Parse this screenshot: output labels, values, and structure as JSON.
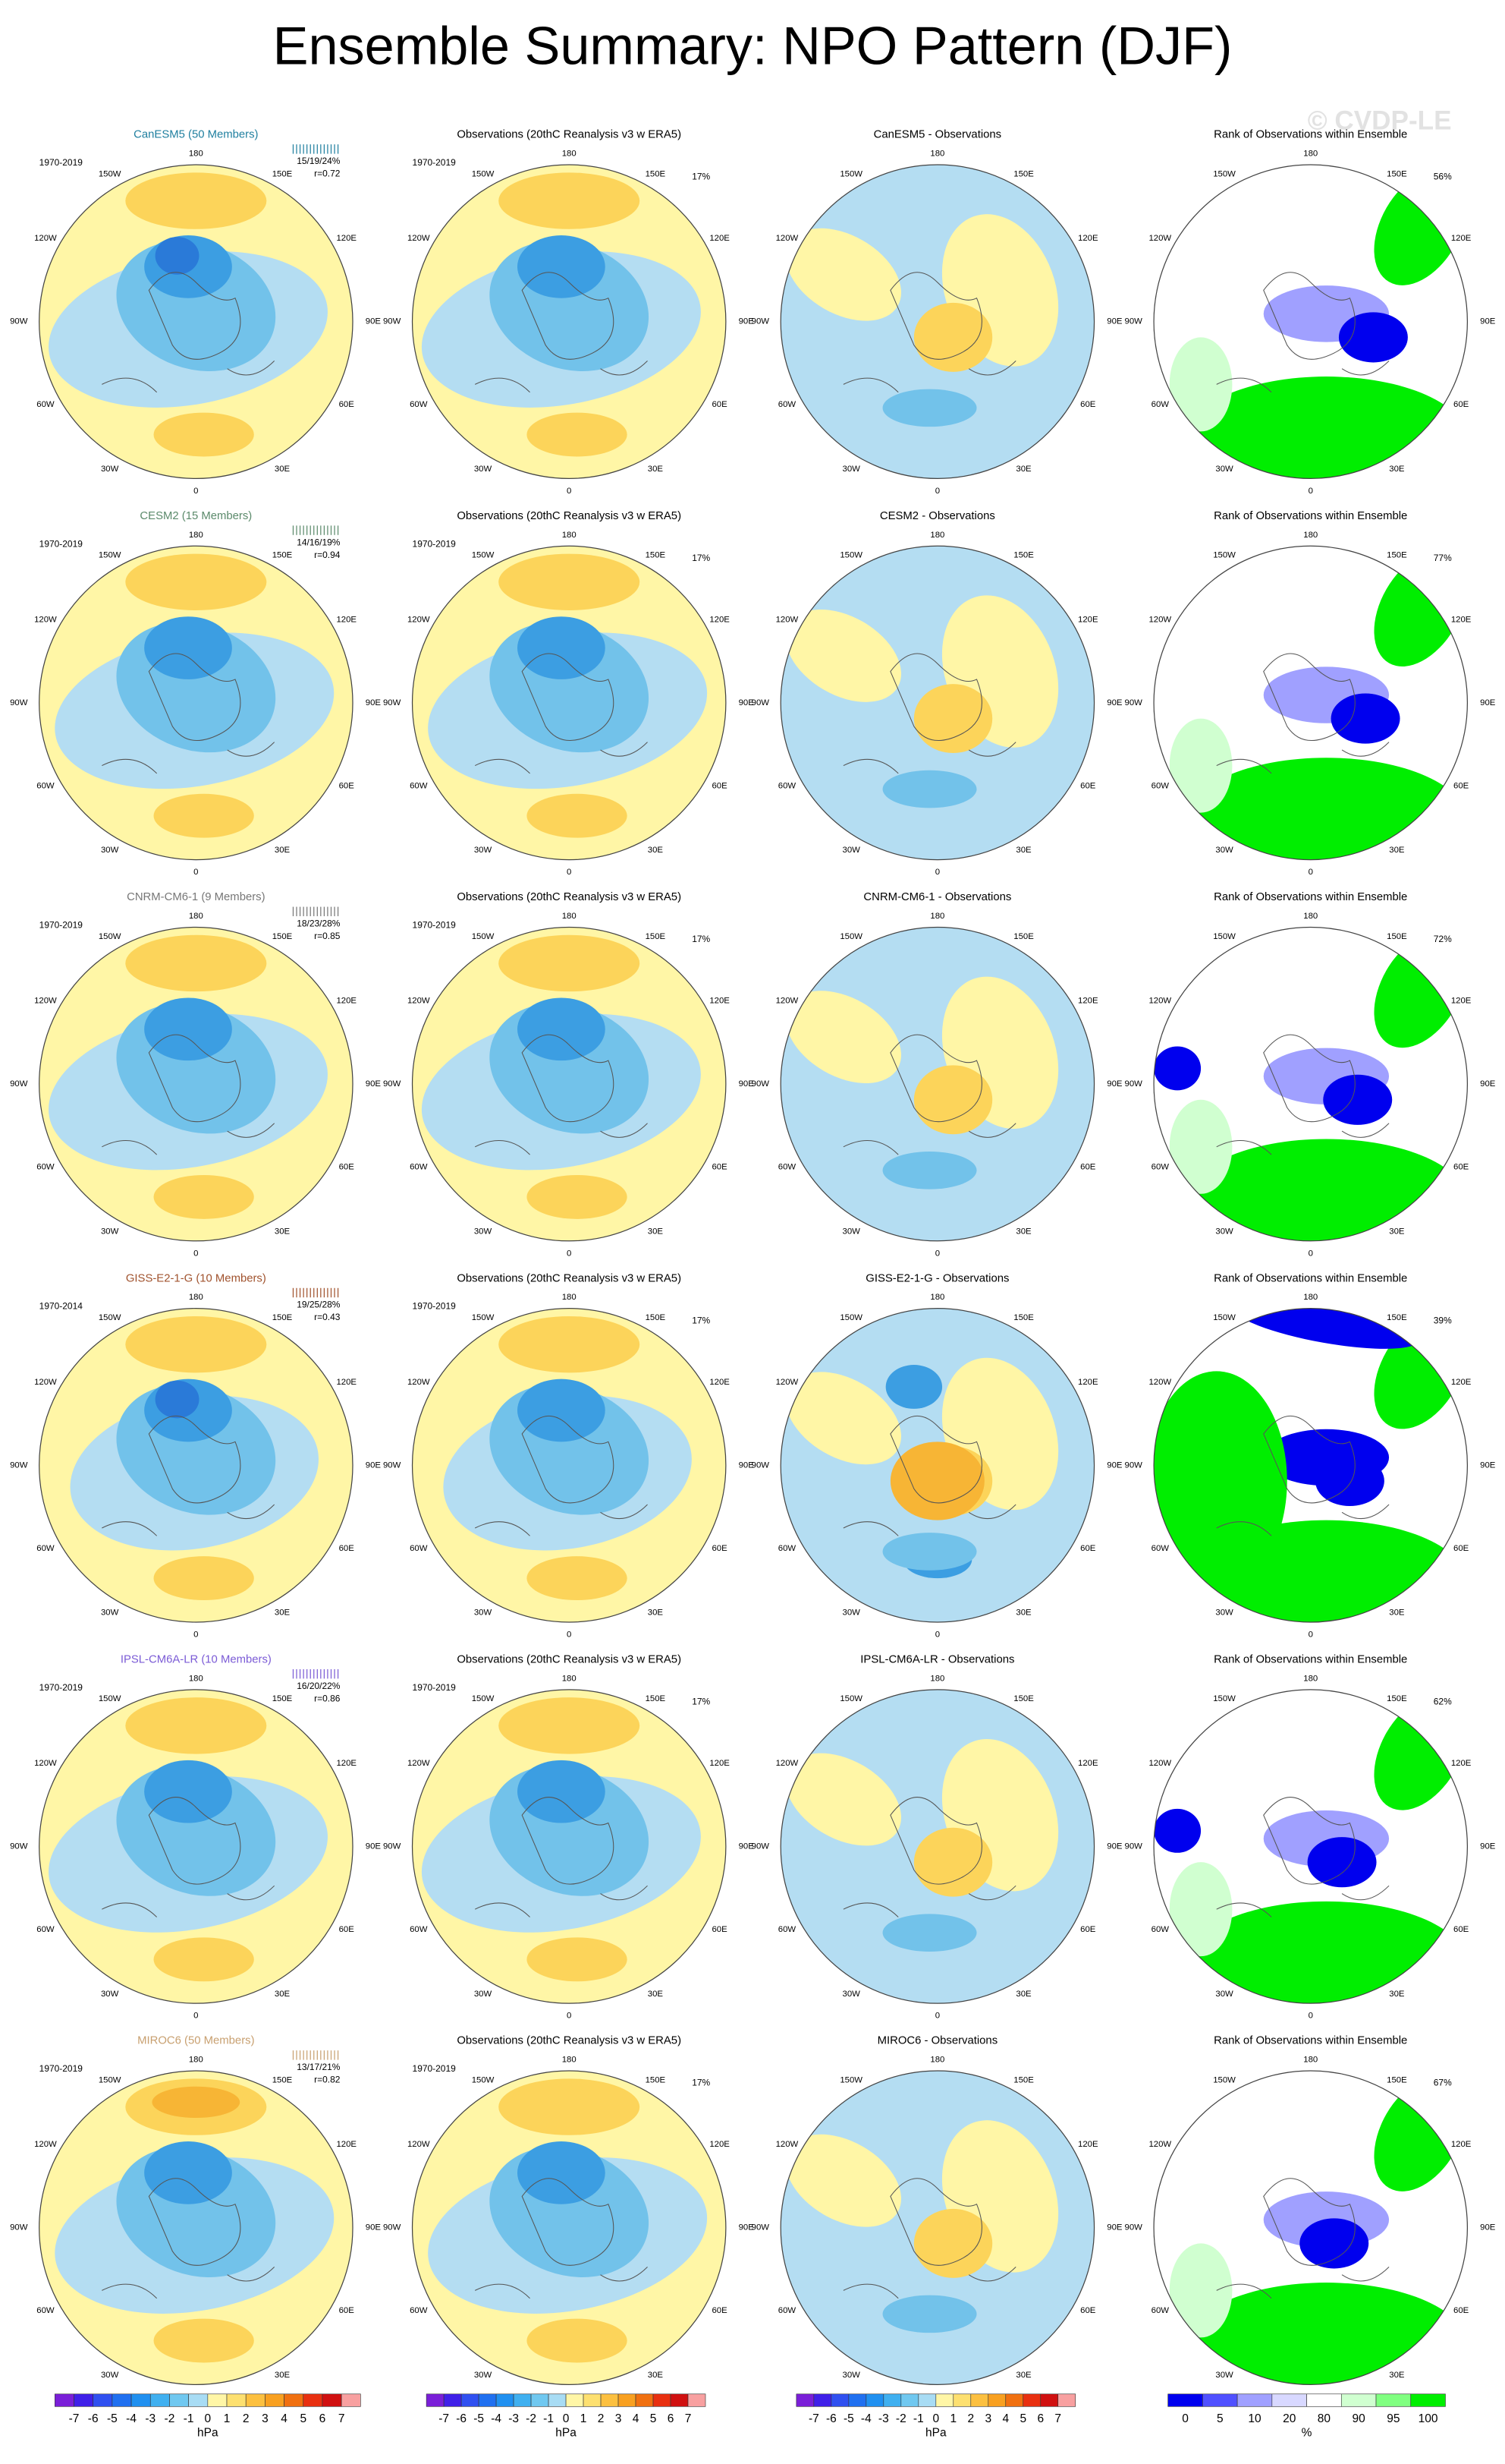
{
  "title": "Ensemble Summary: NPO Pattern (DJF)",
  "watermark": "© CVDP-LE",
  "lon_labels": [
    "180",
    "150W",
    "150E",
    "120W",
    "120E",
    "90W",
    "90E",
    "60W",
    "60E",
    "30W",
    "30E",
    "0"
  ],
  "rows": [
    {
      "panels": [
        {
          "title": "CanESM5 (50 Members)",
          "title_color": "#1f7f9f",
          "period": "1970-2019",
          "stats": "15/19/24%",
          "corr": "r=0.72"
        },
        {
          "title": "Observations (20thC Reanalysis v3 w ERA5)",
          "period": "1970-2019",
          "pct": "17%"
        },
        {
          "title": "CanESM5 - Observations"
        },
        {
          "title": "Rank of Observations within Ensemble",
          "pct": "56%"
        }
      ]
    },
    {
      "panels": [
        {
          "title": "CESM2 (15 Members)",
          "title_color": "#5b8a6b",
          "period": "1970-2019",
          "stats": "14/16/19%",
          "corr": "r=0.94"
        },
        {
          "title": "Observations (20thC Reanalysis v3 w ERA5)",
          "period": "1970-2019",
          "pct": "17%"
        },
        {
          "title": "CESM2 - Observations"
        },
        {
          "title": "Rank of Observations within Ensemble",
          "pct": "77%"
        }
      ]
    },
    {
      "panels": [
        {
          "title": "CNRM-CM6-1 (9 Members)",
          "title_color": "#777777",
          "period": "1970-2019",
          "stats": "18/23/28%",
          "corr": "r=0.85"
        },
        {
          "title": "Observations (20thC Reanalysis v3 w ERA5)",
          "period": "1970-2019",
          "pct": "17%"
        },
        {
          "title": "CNRM-CM6-1 - Observations"
        },
        {
          "title": "Rank of Observations within Ensemble",
          "pct": "72%"
        }
      ]
    },
    {
      "panels": [
        {
          "title": "GISS-E2-1-G (10 Members)",
          "title_color": "#a0522d",
          "period": "1970-2014",
          "stats": "19/25/28%",
          "corr": "r=0.43"
        },
        {
          "title": "Observations (20thC Reanalysis v3 w ERA5)",
          "period": "1970-2019",
          "pct": "17%"
        },
        {
          "title": "GISS-E2-1-G - Observations"
        },
        {
          "title": "Rank of Observations within Ensemble",
          "pct": "39%"
        }
      ]
    },
    {
      "panels": [
        {
          "title": "IPSL-CM6A-LR (10 Members)",
          "title_color": "#7b5bd6",
          "period": "1970-2019",
          "stats": "16/20/22%",
          "corr": "r=0.86"
        },
        {
          "title": "Observations (20thC Reanalysis v3 w ERA5)",
          "period": "1970-2019",
          "pct": "17%"
        },
        {
          "title": "IPSL-CM6A-LR - Observations"
        },
        {
          "title": "Rank of Observations within Ensemble",
          "pct": "62%"
        }
      ]
    },
    {
      "panels": [
        {
          "title": "MIROC6 (50 Members)",
          "title_color": "#c8a070",
          "period": "1970-2019",
          "stats": "13/17/21%",
          "corr": "r=0.82"
        },
        {
          "title": "Observations (20thC Reanalysis v3 w ERA5)",
          "period": "1970-2019",
          "pct": "17%"
        },
        {
          "title": "MIROC6 - Observations"
        },
        {
          "title": "Rank of Observations within Ensemble",
          "pct": "67%"
        }
      ]
    }
  ],
  "colorbars": [
    {
      "labels": [
        "-7",
        "-6",
        "-5",
        "-4",
        "-3",
        "-2",
        "-1",
        "0",
        "1",
        "2",
        "3",
        "4",
        "5",
        "6",
        "7"
      ],
      "unit": "hPa",
      "colors": [
        "#7a1fd8",
        "#4020e8",
        "#3050f0",
        "#2070f0",
        "#2090f0",
        "#40b0f0",
        "#70c8f0",
        "#a8dcf4",
        "#fff6a6",
        "#fde070",
        "#fcc040",
        "#f8a020",
        "#f07010",
        "#e83010",
        "#d01010",
        "#f8a0a0"
      ]
    },
    {
      "labels": [
        "-7",
        "-6",
        "-5",
        "-4",
        "-3",
        "-2",
        "-1",
        "0",
        "1",
        "2",
        "3",
        "4",
        "5",
        "6",
        "7"
      ],
      "unit": "hPa",
      "colors": [
        "#7a1fd8",
        "#4020e8",
        "#3050f0",
        "#2070f0",
        "#2090f0",
        "#40b0f0",
        "#70c8f0",
        "#a8dcf4",
        "#fff6a6",
        "#fde070",
        "#fcc040",
        "#f8a020",
        "#f07010",
        "#e83010",
        "#d01010",
        "#f8a0a0"
      ]
    },
    {
      "labels": [
        "-7",
        "-6",
        "-5",
        "-4",
        "-3",
        "-2",
        "-1",
        "0",
        "1",
        "2",
        "3",
        "4",
        "5",
        "6",
        "7"
      ],
      "unit": "hPa",
      "colors": [
        "#7a1fd8",
        "#4020e8",
        "#3050f0",
        "#2070f0",
        "#2090f0",
        "#40b0f0",
        "#70c8f0",
        "#a8dcf4",
        "#fff6a6",
        "#fde070",
        "#fcc040",
        "#f8a020",
        "#f07010",
        "#e83010",
        "#d01010",
        "#f8a0a0"
      ]
    },
    {
      "labels": [
        "0",
        "5",
        "10",
        "20",
        "80",
        "90",
        "95",
        "100"
      ],
      "unit": "%",
      "colors": [
        "#0000ee",
        "#5050ff",
        "#a0a0ff",
        "#d8d8ff",
        "#ffffff",
        "#d0ffd0",
        "#80ff80",
        "#00ee00"
      ]
    }
  ]
}
